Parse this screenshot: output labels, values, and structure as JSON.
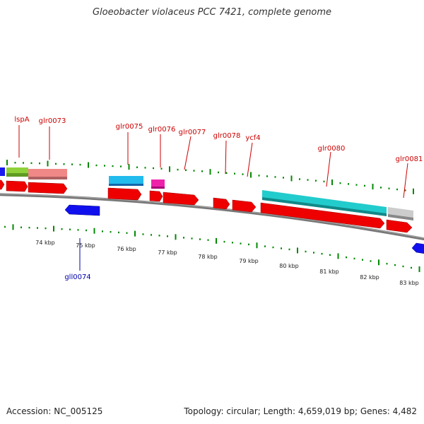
{
  "title": "Gloeobacter violaceus PCC 7421, complete genome",
  "footer": {
    "accession": "Accession: NC_005125",
    "summary": "Topology: circular; Length: 4,659,019 bp; Genes: 4,482"
  },
  "colors": {
    "forward_gene": "#ff0000",
    "reverse_gene": "#0000ff",
    "backbone": "#888888",
    "tick": "#008800",
    "label_forward": "#cc0000",
    "label_reverse": "#0000aa"
  },
  "scale_labels": [
    "74 kbp",
    "75 kbp",
    "76 kbp",
    "77 kbp",
    "78 kbp",
    "79 kbp",
    "80 kbp",
    "81 kbp",
    "82 kbp",
    "83 kbp"
  ],
  "gene_labels_forward": [
    "lspA",
    "glr0073",
    "glr0075",
    "glr0076",
    "glr0077",
    "glr0078",
    "ycf4",
    "glr0080",
    "glr0081"
  ],
  "gene_labels_reverse": [
    "gll0074"
  ]
}
